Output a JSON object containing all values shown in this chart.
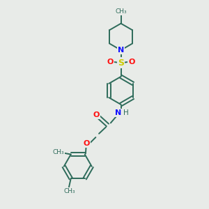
{
  "background_color": "#e8ebe8",
  "bond_color": "#2d6b5a",
  "N_color": "#1010ff",
  "O_color": "#ff1010",
  "S_color": "#cccc00",
  "linewidth": 1.4,
  "figsize": [
    3.0,
    3.0
  ],
  "dpi": 100,
  "xlim": [
    0,
    10
  ],
  "ylim": [
    0,
    10
  ]
}
